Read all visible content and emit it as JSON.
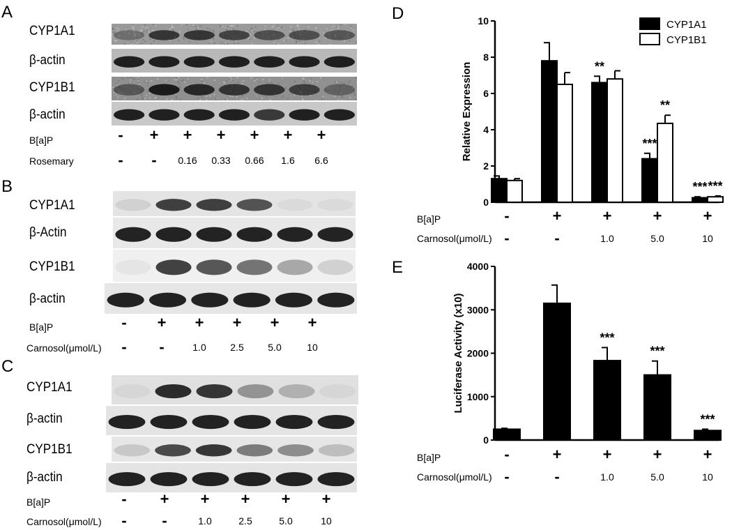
{
  "panels": {
    "A": {
      "letter": "A",
      "blots": [
        {
          "label": "CYP1A1",
          "pattern": [
            0.35,
            0.8,
            0.8,
            0.7,
            0.6,
            0.6,
            0.55
          ],
          "bg": "#9a9a9a",
          "noise": true
        },
        {
          "label": "β-actin",
          "pattern": [
            1,
            1,
            1,
            1,
            1,
            1,
            1
          ],
          "bg": "#b8b8b8",
          "noise": false
        },
        {
          "label": "CYP1B1",
          "pattern": [
            0.5,
            1,
            0.9,
            0.8,
            0.8,
            0.7,
            0.4
          ],
          "bg": "#909090",
          "noise": true
        },
        {
          "label": "β-actin",
          "pattern": [
            1,
            1,
            1,
            1,
            0.85,
            1,
            1
          ],
          "bg": "#c8c8c8",
          "noise": false
        }
      ],
      "treatments": [
        {
          "name": "B[a]P",
          "values": [
            "-",
            "+",
            "+",
            "+",
            "+",
            "+",
            "+"
          ]
        },
        {
          "name": "Rosemary",
          "values": [
            "-",
            "-",
            "0.16",
            "0.33",
            "0.66",
            "1.6",
            "6.6"
          ]
        }
      ]
    },
    "B": {
      "letter": "B",
      "blots": [
        {
          "label": "CYP1A1",
          "pattern": [
            0.1,
            0.85,
            0.85,
            0.75,
            0.05,
            0.05
          ],
          "bg": "#e4e4e4",
          "noise": false
        },
        {
          "label": "β-Actin",
          "pattern": [
            1,
            1,
            1,
            1,
            1,
            1
          ],
          "bg": "#e8e8e8",
          "noise": false
        },
        {
          "label": "CYP1B1",
          "pattern": [
            0.05,
            0.85,
            0.75,
            0.6,
            0.35,
            0.15
          ],
          "bg": "#f0f0f0",
          "noise": false
        },
        {
          "label": "β-actin",
          "pattern": [
            1,
            1,
            1,
            1,
            1,
            1
          ],
          "bg": "#e6e6e6",
          "noise": false
        }
      ],
      "treatments": [
        {
          "name": "B[a]P",
          "values": [
            "-",
            "+",
            "+",
            "+",
            "+",
            "+"
          ]
        },
        {
          "name": "Carnosol(μmol/L)",
          "values": [
            "-",
            "-",
            "1.0",
            "2.5",
            "5.0",
            "10"
          ]
        }
      ]
    },
    "C": {
      "letter": "C",
      "blots": [
        {
          "label": "CYP1A1",
          "pattern": [
            0.05,
            0.95,
            0.9,
            0.4,
            0.25,
            0.05
          ],
          "bg": "#e0e0e0",
          "noise": false
        },
        {
          "label": "β-actin",
          "pattern": [
            1,
            1,
            1,
            1,
            1,
            1
          ],
          "bg": "#e4e4e4",
          "noise": false
        },
        {
          "label": "CYP1B1",
          "pattern": [
            0.15,
            0.8,
            0.9,
            0.55,
            0.45,
            0.2
          ],
          "bg": "#e6e6e6",
          "noise": false
        },
        {
          "label": "β-actin",
          "pattern": [
            1,
            1,
            1,
            1,
            1,
            1
          ],
          "bg": "#e4e4e4",
          "noise": false
        }
      ],
      "treatments": [
        {
          "name": "B[a]P",
          "values": [
            "-",
            "+",
            "+",
            "+",
            "+",
            "+"
          ]
        },
        {
          "name": "Carnosol(μmol/L)",
          "values": [
            "-",
            "-",
            "1.0",
            "2.5",
            "5.0",
            "10"
          ]
        }
      ]
    },
    "D": {
      "letter": "D",
      "treatments": [
        {
          "name": "B[a]P",
          "values": [
            "-",
            "+",
            "+",
            "+",
            "+"
          ]
        },
        {
          "name": "Carnosol(μmol/L)",
          "values": [
            "-",
            "-",
            "1.0",
            "5.0",
            "10"
          ]
        }
      ]
    },
    "E": {
      "letter": "E",
      "treatments": [
        {
          "name": "B[a]P",
          "values": [
            "-",
            "+",
            "+",
            "+",
            "+"
          ]
        },
        {
          "name": "Carnosol(μmol/L)",
          "values": [
            "-",
            "-",
            "1.0",
            "5.0",
            "10"
          ]
        }
      ]
    }
  },
  "chart_data": [
    {
      "type": "bar",
      "panel": "D",
      "ylabel": "Relative Expression",
      "ylim": [
        0,
        10
      ],
      "yticks": [
        0,
        2,
        4,
        6,
        8,
        10
      ],
      "legend_position": "top-right",
      "series": [
        {
          "name": "CYP1A1",
          "color": "#000000",
          "values": [
            1.3,
            7.8,
            6.6,
            2.4,
            0.25
          ],
          "errors": [
            0.15,
            1.0,
            0.35,
            0.3,
            0.05
          ],
          "annotations": [
            "",
            "",
            "**",
            "***",
            "***"
          ]
        },
        {
          "name": "CYP1B1",
          "color": "#ffffff",
          "values": [
            1.2,
            6.5,
            6.8,
            4.35,
            0.3
          ],
          "errors": [
            0.1,
            0.65,
            0.45,
            0.45,
            0.05
          ],
          "annotations": [
            "",
            "",
            "",
            "**",
            "***"
          ]
        }
      ]
    },
    {
      "type": "bar",
      "panel": "E",
      "ylabel": "Luciferase Activity (x10)",
      "ylim": [
        0,
        4000
      ],
      "yticks": [
        0,
        1000,
        2000,
        3000,
        4000
      ],
      "series": [
        {
          "color": "#000000",
          "values": [
            250,
            3150,
            1830,
            1500,
            220
          ],
          "errors": [
            20,
            420,
            300,
            320,
            30
          ],
          "annotations": [
            "",
            "",
            "***",
            "***",
            "***"
          ]
        }
      ]
    }
  ]
}
